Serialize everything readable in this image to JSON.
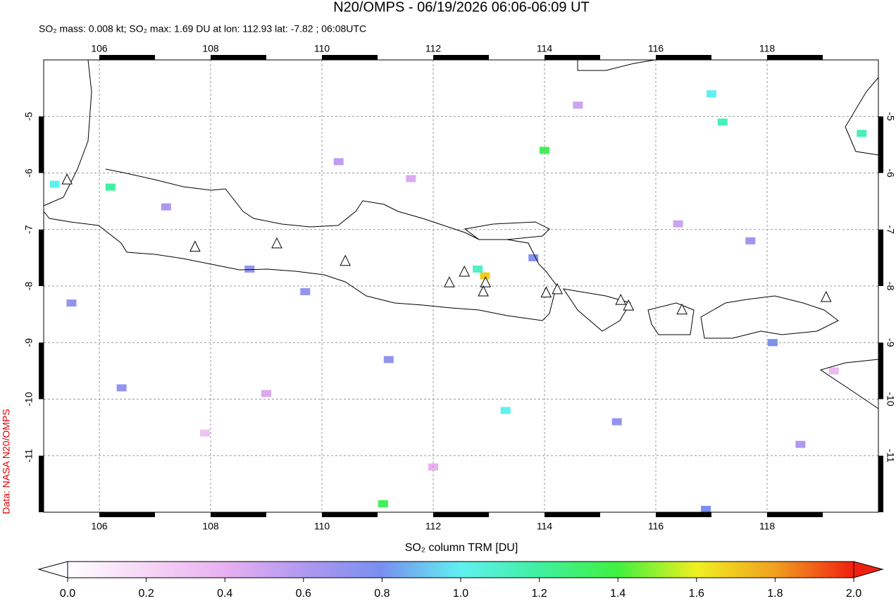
{
  "chart_data": {
    "type": "map",
    "title": "N20/OMPS - 06/19/2026 06:06-06:09 UT",
    "subtitle": "SO₂ mass: 0.008 kt; SO₂ max: 1.69 DU at lon: 112.93 lat: -7.82 ; 06:08UTC",
    "source": "Data: NASA N20/OMPS",
    "xlim": [
      105,
      120
    ],
    "ylim": [
      -12,
      -4
    ],
    "xticks": [
      106,
      108,
      110,
      112,
      114,
      116,
      118
    ],
    "yticks": [
      -5,
      -6,
      -7,
      -8,
      -9,
      -10,
      -11
    ],
    "grid": true,
    "volcanoes": {
      "lon": [
        105.42,
        107.72,
        109.19,
        110.42,
        112.29,
        112.56,
        112.94,
        112.9,
        114.03,
        114.23,
        115.37,
        115.51,
        116.47,
        119.06
      ],
      "lat": [
        -6.12,
        -7.31,
        -7.25,
        -7.56,
        -7.94,
        -7.75,
        -7.94,
        -8.1,
        -8.12,
        -8.06,
        -8.25,
        -8.35,
        -8.42,
        -8.2
      ]
    },
    "pixels": {
      "lon": [
        112.93,
        112.8,
        114.0,
        111.1,
        105.2,
        106.2,
        117.2,
        119.7,
        117.0,
        116.9,
        109.7,
        113.3,
        111.2,
        106.4,
        108.7,
        118.1,
        115.3,
        107.2,
        110.3,
        113.8,
        116.4,
        118.6,
        105.5,
        109.0,
        112.0,
        114.6,
        117.7,
        119.2,
        107.9,
        111.6
      ],
      "lat": [
        -7.82,
        -7.7,
        -5.6,
        -11.85,
        -6.2,
        -6.25,
        -5.1,
        -5.3,
        -4.6,
        -11.95,
        -8.1,
        -10.2,
        -9.3,
        -9.8,
        -7.7,
        -9.0,
        -10.4,
        -6.6,
        -5.8,
        -7.5,
        -6.9,
        -10.8,
        -8.3,
        -9.9,
        -11.2,
        -4.8,
        -7.2,
        -9.5,
        -10.6,
        -6.1
      ],
      "values": [
        1.69,
        1.1,
        1.35,
        1.35,
        1.0,
        1.2,
        1.15,
        1.15,
        1.0,
        0.8,
        0.7,
        1.0,
        0.7,
        0.7,
        0.7,
        0.8,
        0.7,
        0.6,
        0.55,
        0.75,
        0.5,
        0.6,
        0.7,
        0.45,
        0.4,
        0.5,
        0.65,
        0.35,
        0.3,
        0.45
      ]
    },
    "colorbar": {
      "label": "SO₂ column TRM [DU]",
      "lim": [
        0,
        2
      ],
      "ticks": [
        {
          "value": 0,
          "label": "0.0"
        },
        {
          "value": 0.2,
          "label": "0.2"
        },
        {
          "value": 0.4,
          "label": "0.4"
        },
        {
          "value": 0.6,
          "label": "0.6"
        },
        {
          "value": 0.8,
          "label": "0.8"
        },
        {
          "value": 1,
          "label": "1.0"
        },
        {
          "value": 1.2,
          "label": "1.2"
        },
        {
          "value": 1.4,
          "label": "1.4"
        },
        {
          "value": 1.6,
          "label": "1.6"
        },
        {
          "value": 1.8,
          "label": "1.8"
        },
        {
          "value": 2,
          "label": "2.0"
        }
      ],
      "colors": [
        "#ffffff",
        "#f6d6f6",
        "#e8b0f0",
        "#b098f0",
        "#7890f0",
        "#60f0f0",
        "#40f0a0",
        "#40f040",
        "#f0f020",
        "#f0a020",
        "#f02010"
      ]
    }
  }
}
